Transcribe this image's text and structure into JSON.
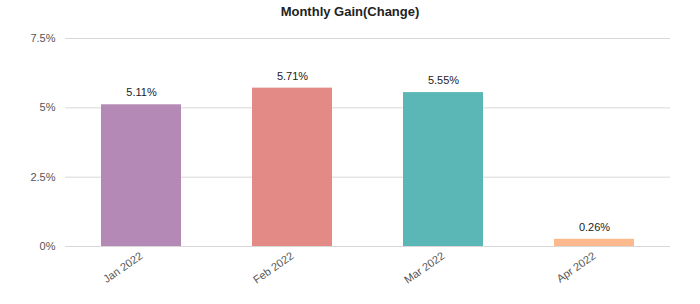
{
  "chart_data": {
    "type": "bar",
    "title": "Monthly Gain(Change)",
    "categories": [
      "Jan 2022",
      "Feb 2022",
      "Mar 2022",
      "Apr 2022"
    ],
    "values": [
      5.11,
      5.71,
      5.55,
      0.26
    ],
    "value_labels": [
      "5.11%",
      "5.71%",
      "5.55%",
      "0.26%"
    ],
    "colors": [
      "#b589b5",
      "#e38a87",
      "#5bb7b5",
      "#fdb98e"
    ],
    "ylim": [
      0,
      7.5
    ],
    "yticks": [
      {
        "value": 0,
        "label": "0%"
      },
      {
        "value": 2.5,
        "label": "2.5%"
      },
      {
        "value": 5,
        "label": "5%"
      },
      {
        "value": 7.5,
        "label": "7.5%"
      }
    ],
    "grid": true,
    "data_labels": true
  }
}
